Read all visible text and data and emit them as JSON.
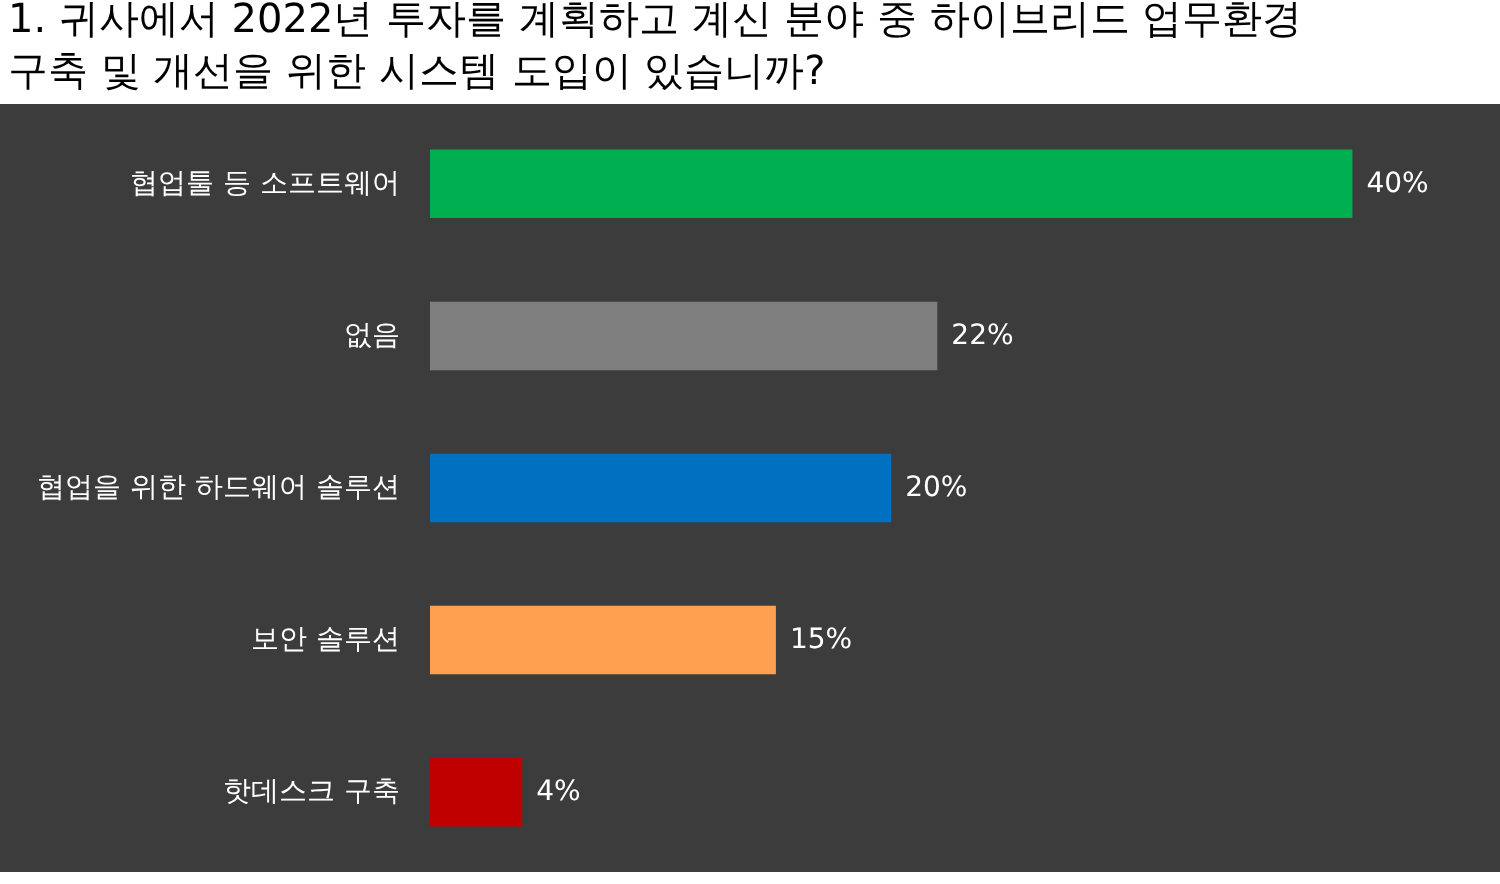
{
  "chart_data": {
    "type": "bar",
    "orientation": "horizontal",
    "title": "1. 귀사에서 2022년 투자를 계획하고 계신 분야 중 하이브리드 업무환경\n구축 및 개선을 위한 시스템 도입이 있습니까?",
    "categories": [
      "협업툴 등 소프트웨어",
      "없음",
      "협업을 위한 하드웨어 솔루션",
      "보안 솔루션",
      "핫데스크 구축"
    ],
    "values": [
      40,
      22,
      20,
      15,
      4
    ],
    "colors": [
      "#00b050",
      "#7f7f7f",
      "#0070c0",
      "#ffa050",
      "#c00000"
    ],
    "value_labels": [
      "40%",
      "22%",
      "20%",
      "15%",
      "4%"
    ],
    "grid": false,
    "legend": false
  }
}
